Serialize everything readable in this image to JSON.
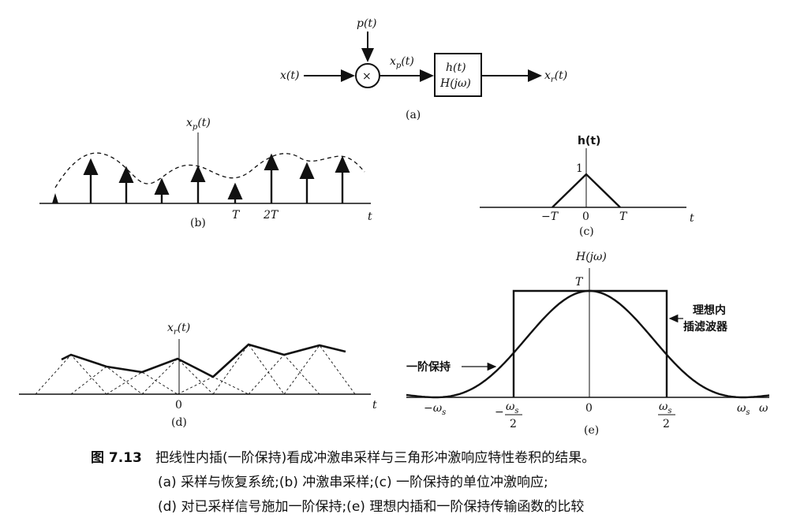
{
  "panel_a": {
    "input": "x(t)",
    "carrier": "p(t)",
    "product_symbol": "×",
    "sampled": "x",
    "sampled_sub": "p",
    "sampled_arg": "(t)",
    "block_line1": "h(t)",
    "block_line2": "H(jω)",
    "output": "x",
    "output_sub": "r",
    "output_arg": "(t)",
    "caption": "(a)"
  },
  "panel_b": {
    "ylabel": "x",
    "ylabel_sub": "p",
    "ylabel_arg": "(t)",
    "tick_T": "T",
    "tick_2T": "2T",
    "xlabel": "t",
    "caption": "(b)"
  },
  "panel_c": {
    "ylabel": "h(t)",
    "peak": "1",
    "tick_negT": "−T",
    "tick_0": "0",
    "tick_T": "T",
    "xlabel": "t",
    "caption": "(c)"
  },
  "panel_d": {
    "ylabel": "x",
    "ylabel_sub": "r",
    "ylabel_arg": "(t)",
    "tick_0": "0",
    "xlabel": "t",
    "caption": "(d)"
  },
  "panel_e": {
    "ylabel": "H(jω)",
    "peak": "T",
    "tick_neg_ws": "−ω",
    "tick_neg_ws_sub": "s",
    "tick_neg_half_num": "ω",
    "tick_neg_half_sub": "s",
    "tick_neg_half_den": "2",
    "tick_neg_half_sign": "−",
    "tick_0": "0",
    "tick_half_num": "ω",
    "tick_half_sub": "s",
    "tick_half_den": "2",
    "tick_ws": "ω",
    "tick_ws_sub": "s",
    "xlabel": "ω",
    "label_ideal_1": "理想内",
    "label_ideal_2": "插滤波器",
    "label_foh": "一阶保持",
    "caption": "(e)"
  },
  "caption": {
    "number": "图 7.13",
    "line1": "把线性内插(一阶保持)看成冲激串采样与三角形冲激响应特性卷积的结果。",
    "line2": "(a) 采样与恢复系统;(b) 冲激串采样;(c) 一阶保持的单位冲激响应;",
    "line3": "(d) 对已采样信号施加一阶保持;(e) 理想内插和一阶保持传输函数的比较"
  }
}
